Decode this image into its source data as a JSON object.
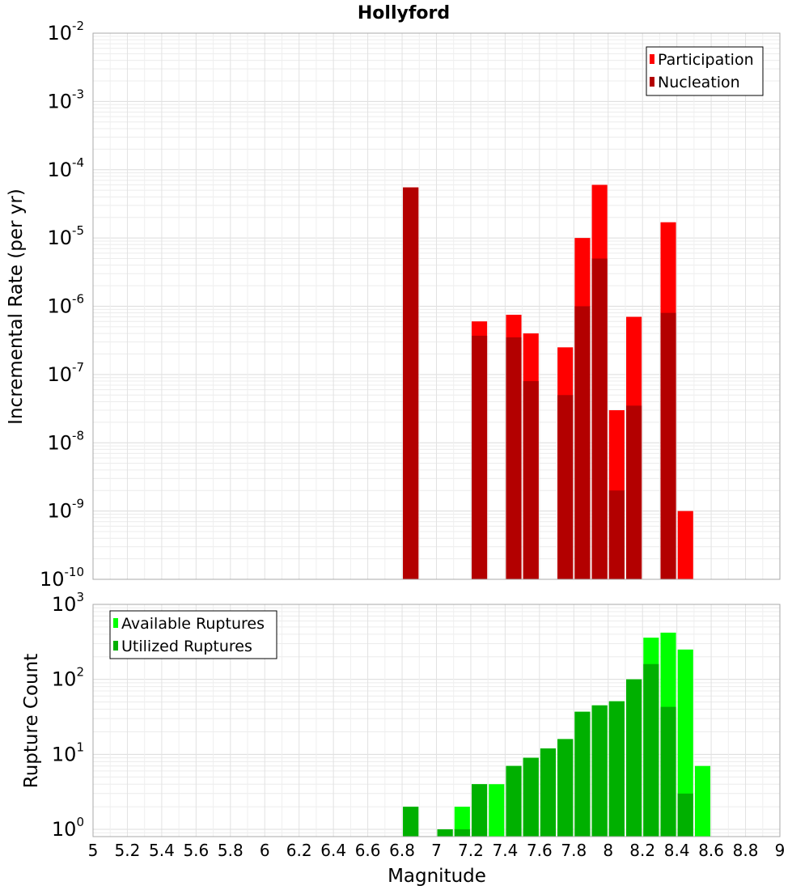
{
  "chart_data": [
    {
      "type": "bar",
      "title": "Hollyford",
      "ylabel": "Incremental Rate (per yr)",
      "xlabel": "",
      "yscale": "log",
      "ylim": [
        1e-10,
        0.01
      ],
      "xlim": [
        5,
        9
      ],
      "grid": true,
      "legend_position": "top-right",
      "bar_width": 0.09,
      "series": [
        {
          "name": "Participation",
          "color": "#ff0000",
          "x": [
            6.85,
            7.25,
            7.45,
            7.55,
            7.75,
            7.85,
            7.95,
            8.05,
            8.15,
            8.35,
            8.45
          ],
          "values": [
            5.5e-05,
            6e-07,
            7.5e-07,
            4e-07,
            2.5e-07,
            1e-05,
            6e-05,
            3e-08,
            7e-07,
            1.7e-05,
            1e-09
          ]
        },
        {
          "name": "Nucleation",
          "color": "#b30000",
          "x": [
            6.85,
            7.25,
            7.45,
            7.55,
            7.75,
            7.85,
            7.95,
            8.05,
            8.15,
            8.35
          ],
          "values": [
            5.5e-05,
            3.7e-07,
            3.5e-07,
            8e-08,
            5e-08,
            1e-06,
            5e-06,
            2e-09,
            3.5e-08,
            8e-07
          ]
        }
      ]
    },
    {
      "type": "bar",
      "title": "",
      "ylabel": "Rupture Count",
      "xlabel": "Magnitude",
      "yscale": "log",
      "ylim": [
        0.8,
        1000
      ],
      "xlim": [
        5,
        9
      ],
      "grid": true,
      "legend_position": "top-left",
      "bar_width": 0.09,
      "x_ticks": [
        "5",
        "5.2",
        "5.4",
        "5.6",
        "5.8",
        "6",
        "6.2",
        "6.4",
        "6.6",
        "6.8",
        "7",
        "7.2",
        "7.4",
        "7.6",
        "7.8",
        "8",
        "8.2",
        "8.4",
        "8.6",
        "8.8",
        "9"
      ],
      "series": [
        {
          "name": "Available Ruptures",
          "color": "#00ff00",
          "x": [
            6.85,
            7.05,
            7.15,
            7.25,
            7.35,
            7.45,
            7.55,
            7.65,
            7.75,
            7.85,
            7.95,
            8.05,
            8.15,
            8.25,
            8.35,
            8.45,
            8.55
          ],
          "values": [
            2,
            1,
            2,
            4,
            4,
            7,
            9,
            12,
            16,
            37,
            45,
            51,
            100,
            360,
            420,
            250,
            7
          ]
        },
        {
          "name": "Utilized Ruptures",
          "color": "#00b000",
          "x": [
            6.85,
            7.05,
            7.15,
            7.25,
            7.45,
            7.55,
            7.65,
            7.75,
            7.85,
            7.95,
            8.05,
            8.15,
            8.25,
            8.35,
            8.45
          ],
          "values": [
            2,
            1,
            1,
            4,
            7,
            9,
            12,
            16,
            37,
            45,
            51,
            100,
            160,
            43,
            3
          ]
        }
      ]
    }
  ]
}
